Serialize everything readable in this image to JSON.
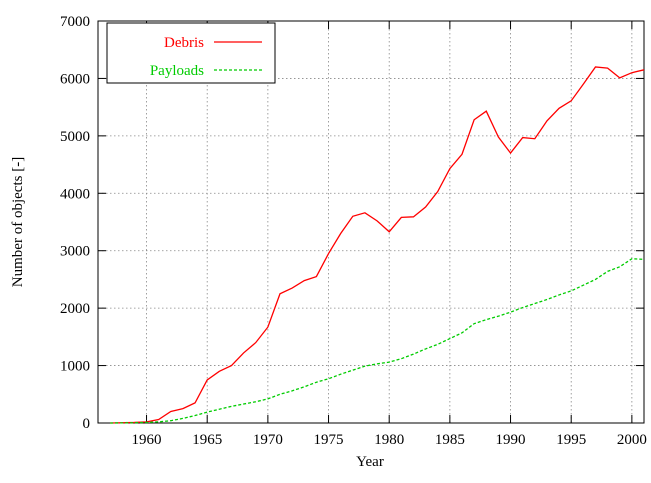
{
  "chart_data": {
    "type": "line",
    "xlabel": "Year",
    "ylabel": "Number of objects [-]",
    "x": [
      1957,
      1958,
      1959,
      1960,
      1961,
      1962,
      1963,
      1964,
      1965,
      1966,
      1967,
      1968,
      1969,
      1970,
      1971,
      1972,
      1973,
      1974,
      1975,
      1976,
      1977,
      1978,
      1979,
      1980,
      1981,
      1982,
      1983,
      1984,
      1985,
      1986,
      1987,
      1988,
      1989,
      1990,
      1991,
      1992,
      1993,
      1994,
      1995,
      1996,
      1997,
      1998,
      1999,
      2000,
      2001
    ],
    "series": [
      {
        "name": "Debris",
        "color": "#ff0000",
        "dashed": false,
        "values": [
          0,
          5,
          10,
          20,
          60,
          200,
          250,
          350,
          750,
          900,
          1000,
          1220,
          1400,
          1670,
          2250,
          2350,
          2480,
          2550,
          2950,
          3300,
          3600,
          3660,
          3520,
          3330,
          3580,
          3590,
          3760,
          4030,
          4430,
          4680,
          5280,
          5430,
          4980,
          4700,
          4970,
          4950,
          5260,
          5480,
          5610,
          5900,
          6200,
          6180,
          6010,
          6100,
          6150
        ]
      },
      {
        "name": "Payloads",
        "color": "#00cc00",
        "dashed": true,
        "values": [
          0,
          2,
          5,
          10,
          20,
          40,
          80,
          130,
          190,
          240,
          290,
          330,
          370,
          420,
          500,
          560,
          630,
          710,
          770,
          850,
          920,
          990,
          1030,
          1060,
          1120,
          1200,
          1290,
          1370,
          1470,
          1570,
          1730,
          1800,
          1860,
          1930,
          2010,
          2080,
          2150,
          2230,
          2300,
          2400,
          2500,
          2640,
          2720,
          2860,
          2850
        ]
      }
    ],
    "xlim": [
      1956,
      2001
    ],
    "xticks": [
      1960,
      1965,
      1970,
      1975,
      1980,
      1985,
      1990,
      1995,
      2000
    ],
    "ylim": [
      0,
      7000
    ],
    "yticks": [
      0,
      1000,
      2000,
      3000,
      4000,
      5000,
      6000,
      7000
    ],
    "grid": true,
    "legend": "top-left"
  }
}
